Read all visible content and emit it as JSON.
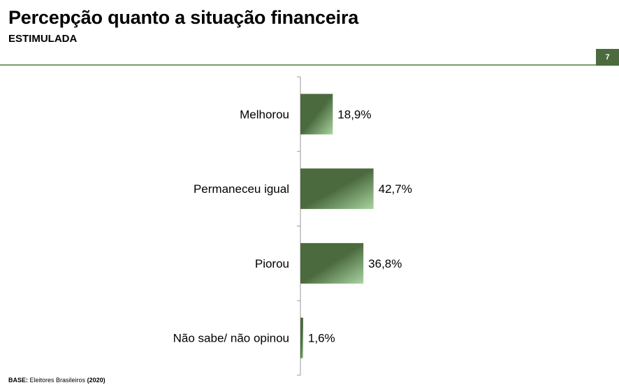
{
  "header": {
    "title": "Percepção quanto a situação financeira",
    "subtitle": "ESTIMULADA",
    "page_number": "7"
  },
  "footer": {
    "base_label": "BASE:",
    "base_text": "Eleitores Brasileiros",
    "base_year": "(2020)"
  },
  "colors": {
    "bar_dark": "#4b6b3f",
    "bar_light": "#a9d4a0",
    "rule": "#7a9b6c"
  },
  "chart_data": {
    "type": "bar",
    "orientation": "horizontal",
    "categories": [
      "Melhorou",
      "Permaneceu igual",
      "Piorou",
      "Não sabe/ não opinou"
    ],
    "values": [
      18.9,
      42.7,
      36.8,
      1.6
    ],
    "value_labels": [
      "18,9%",
      "42,7%",
      "36,8%",
      "1,6%"
    ],
    "title": "",
    "xlabel": "",
    "ylabel": "",
    "xlim": [
      0,
      100
    ],
    "grid": false,
    "legend": "none"
  }
}
